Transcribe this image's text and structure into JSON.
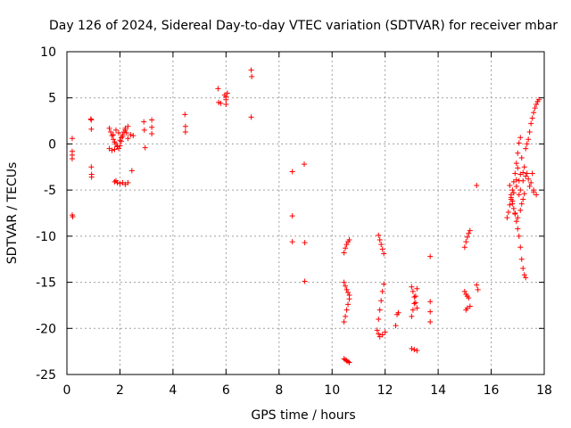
{
  "chart_data": {
    "type": "scatter",
    "title": "Day 126 of 2024, Sidereal Day-to-day VTEC variation (SDTVAR) for receiver mbar",
    "xlabel": "GPS time / hours",
    "ylabel": "SDTVAR / TECUs",
    "xlim": [
      0,
      18
    ],
    "ylim": [
      -25,
      10
    ],
    "xticks": [
      0,
      2,
      4,
      6,
      8,
      10,
      12,
      14,
      16,
      18
    ],
    "xtick_labels": [
      "0",
      "2",
      "4",
      "6",
      "8",
      "10",
      "12",
      "14",
      "16",
      "18"
    ],
    "yticks": [
      -25,
      -20,
      -15,
      -10,
      -5,
      0,
      5,
      10
    ],
    "ytick_labels": [
      "-25",
      "-20",
      "-15",
      "-10",
      "-5",
      "0",
      "5",
      "10"
    ],
    "grid": true,
    "marker": "+",
    "color": "#ff0000",
    "series": [
      {
        "name": "mbar",
        "points": [
          [
            0.2,
            0.6
          ],
          [
            0.2,
            -0.8
          ],
          [
            0.2,
            -1.2
          ],
          [
            0.2,
            -1.6
          ],
          [
            0.2,
            -7.7
          ],
          [
            0.22,
            -7.9
          ],
          [
            0.9,
            2.7
          ],
          [
            0.92,
            2.6
          ],
          [
            0.92,
            1.6
          ],
          [
            0.92,
            -2.5
          ],
          [
            0.93,
            -3.3
          ],
          [
            0.93,
            -3.6
          ],
          [
            1.6,
            1.7
          ],
          [
            1.65,
            1.3
          ],
          [
            1.7,
            0.9
          ],
          [
            1.75,
            0.5
          ],
          [
            1.8,
            0.2
          ],
          [
            1.85,
            0.0
          ],
          [
            1.9,
            -0.3
          ],
          [
            1.95,
            -0.5
          ],
          [
            2.0,
            -0.2
          ],
          [
            2.05,
            0.3
          ],
          [
            2.1,
            0.8
          ],
          [
            2.15,
            1.3
          ],
          [
            2.2,
            1.7
          ],
          [
            2.25,
            1.2
          ],
          [
            2.3,
            0.6
          ],
          [
            1.6,
            -0.5
          ],
          [
            1.7,
            -0.7
          ],
          [
            1.8,
            -0.6
          ],
          [
            1.9,
            -0.2
          ],
          [
            2.0,
            0.4
          ],
          [
            2.1,
            1.0
          ],
          [
            2.2,
            1.5
          ],
          [
            2.3,
            1.9
          ],
          [
            1.75,
            1.0
          ],
          [
            1.85,
            1.5
          ],
          [
            1.95,
            1.2
          ],
          [
            2.05,
            0.7
          ],
          [
            1.8,
            -4.1
          ],
          [
            1.9,
            -4.2
          ],
          [
            2.0,
            -4.3
          ],
          [
            2.1,
            -4.2
          ],
          [
            2.2,
            -4.4
          ],
          [
            2.3,
            -4.2
          ],
          [
            1.85,
            -4.0
          ],
          [
            2.4,
            1.0
          ],
          [
            2.45,
            -2.9
          ],
          [
            2.5,
            0.9
          ],
          [
            2.9,
            2.4
          ],
          [
            2.92,
            1.5
          ],
          [
            2.95,
            -0.4
          ],
          [
            3.2,
            2.6
          ],
          [
            3.2,
            1.8
          ],
          [
            3.2,
            1.1
          ],
          [
            4.45,
            3.2
          ],
          [
            4.47,
            1.9
          ],
          [
            4.47,
            1.3
          ],
          [
            5.7,
            6.0
          ],
          [
            5.72,
            4.5
          ],
          [
            5.8,
            4.4
          ],
          [
            5.95,
            5.3
          ],
          [
            6.0,
            5.1
          ],
          [
            6.0,
            4.8
          ],
          [
            6.0,
            4.3
          ],
          [
            6.05,
            5.5
          ],
          [
            6.95,
            8.0
          ],
          [
            6.97,
            7.3
          ],
          [
            6.95,
            2.9
          ],
          [
            8.5,
            -3.0
          ],
          [
            8.5,
            -7.8
          ],
          [
            8.5,
            -10.6
          ],
          [
            8.95,
            -2.2
          ],
          [
            8.97,
            -10.7
          ],
          [
            8.97,
            -14.9
          ],
          [
            10.45,
            -11.8
          ],
          [
            10.5,
            -11.3
          ],
          [
            10.55,
            -10.9
          ],
          [
            10.6,
            -10.6
          ],
          [
            10.65,
            -10.4
          ],
          [
            10.45,
            -15.0
          ],
          [
            10.5,
            -15.4
          ],
          [
            10.55,
            -15.8
          ],
          [
            10.6,
            -16.1
          ],
          [
            10.65,
            -16.4
          ],
          [
            10.45,
            -19.3
          ],
          [
            10.5,
            -18.7
          ],
          [
            10.55,
            -18.0
          ],
          [
            10.6,
            -17.4
          ],
          [
            10.65,
            -16.8
          ],
          [
            10.45,
            -23.3
          ],
          [
            10.5,
            -23.4
          ],
          [
            10.55,
            -23.5
          ],
          [
            10.6,
            -23.6
          ],
          [
            10.65,
            -23.7
          ],
          [
            11.75,
            -9.9
          ],
          [
            11.8,
            -10.4
          ],
          [
            11.85,
            -10.9
          ],
          [
            11.9,
            -11.4
          ],
          [
            11.95,
            -11.9
          ],
          [
            11.75,
            -19.0
          ],
          [
            11.8,
            -18.0
          ],
          [
            11.85,
            -17.0
          ],
          [
            11.9,
            -16.0
          ],
          [
            11.95,
            -15.2
          ],
          [
            11.7,
            -20.2
          ],
          [
            11.75,
            -20.6
          ],
          [
            11.8,
            -20.9
          ],
          [
            11.9,
            -20.7
          ],
          [
            12.0,
            -20.4
          ],
          [
            12.45,
            -18.5
          ],
          [
            12.5,
            -18.3
          ],
          [
            12.4,
            -19.7
          ],
          [
            13.0,
            -15.5
          ],
          [
            13.05,
            -16.0
          ],
          [
            13.1,
            -16.6
          ],
          [
            13.15,
            -17.2
          ],
          [
            13.2,
            -17.8
          ],
          [
            13.0,
            -18.7
          ],
          [
            13.05,
            -18.0
          ],
          [
            13.1,
            -17.3
          ],
          [
            13.15,
            -16.5
          ],
          [
            13.2,
            -15.7
          ],
          [
            13.0,
            -22.2
          ],
          [
            13.1,
            -22.3
          ],
          [
            13.2,
            -22.4
          ],
          [
            13.7,
            -12.2
          ],
          [
            13.7,
            -17.1
          ],
          [
            13.7,
            -18.2
          ],
          [
            13.7,
            -19.3
          ],
          [
            15.0,
            -11.2
          ],
          [
            15.05,
            -10.6
          ],
          [
            15.1,
            -10.1
          ],
          [
            15.15,
            -9.7
          ],
          [
            15.2,
            -9.4
          ],
          [
            15.0,
            -16.0
          ],
          [
            15.05,
            -16.3
          ],
          [
            15.1,
            -16.5
          ],
          [
            15.15,
            -16.7
          ],
          [
            15.05,
            -18.0
          ],
          [
            15.1,
            -17.8
          ],
          [
            15.2,
            -17.6
          ],
          [
            15.45,
            -4.5
          ],
          [
            15.45,
            -15.3
          ],
          [
            15.5,
            -15.8
          ],
          [
            16.6,
            -8.0
          ],
          [
            16.65,
            -7.4
          ],
          [
            16.7,
            -6.6
          ],
          [
            16.75,
            -5.8
          ],
          [
            16.8,
            -5.0
          ],
          [
            16.85,
            -4.1
          ],
          [
            16.9,
            -3.2
          ],
          [
            16.95,
            -2.1
          ],
          [
            17.0,
            -1.0
          ],
          [
            17.05,
            0.1
          ],
          [
            17.1,
            0.7
          ],
          [
            16.7,
            -4.5
          ],
          [
            16.75,
            -5.5
          ],
          [
            16.8,
            -6.2
          ],
          [
            16.85,
            -7.0
          ],
          [
            16.9,
            -7.6
          ],
          [
            16.95,
            -8.4
          ],
          [
            17.0,
            -9.2
          ],
          [
            17.05,
            -10.0
          ],
          [
            17.1,
            -11.2
          ],
          [
            17.15,
            -12.5
          ],
          [
            17.2,
            -13.5
          ],
          [
            17.25,
            -14.2
          ],
          [
            17.3,
            -14.5
          ],
          [
            16.8,
            -6.5
          ],
          [
            16.9,
            -7.5
          ],
          [
            17.0,
            -8.0
          ],
          [
            17.1,
            -7.2
          ],
          [
            17.2,
            -6.0
          ],
          [
            16.75,
            -6.0
          ],
          [
            16.85,
            -5.3
          ],
          [
            16.95,
            -4.6
          ],
          [
            17.05,
            -4.0
          ],
          [
            17.1,
            -5.0
          ],
          [
            17.2,
            -4.0
          ],
          [
            17.3,
            -3.5
          ],
          [
            17.4,
            -3.8
          ],
          [
            17.5,
            -4.2
          ],
          [
            17.55,
            -3.2
          ],
          [
            17.6,
            -5.0
          ],
          [
            17.45,
            -4.6
          ],
          [
            17.35,
            -3.2
          ],
          [
            17.25,
            -2.5
          ],
          [
            17.15,
            -1.5
          ],
          [
            17.4,
            0.5
          ],
          [
            17.45,
            1.3
          ],
          [
            17.5,
            2.2
          ],
          [
            17.55,
            2.8
          ],
          [
            17.6,
            3.4
          ],
          [
            17.65,
            3.9
          ],
          [
            17.7,
            4.3
          ],
          [
            17.75,
            4.6
          ],
          [
            17.8,
            4.8
          ],
          [
            17.3,
            -0.5
          ],
          [
            17.35,
            0.0
          ],
          [
            17.0,
            -2.6
          ],
          [
            17.1,
            -3.3
          ],
          [
            16.95,
            -3.9
          ],
          [
            17.2,
            -3.1
          ],
          [
            17.05,
            -5.5
          ],
          [
            17.15,
            -6.5
          ],
          [
            17.25,
            -5.4
          ],
          [
            17.6,
            -5.2
          ],
          [
            17.7,
            -5.5
          ]
        ]
      }
    ]
  }
}
